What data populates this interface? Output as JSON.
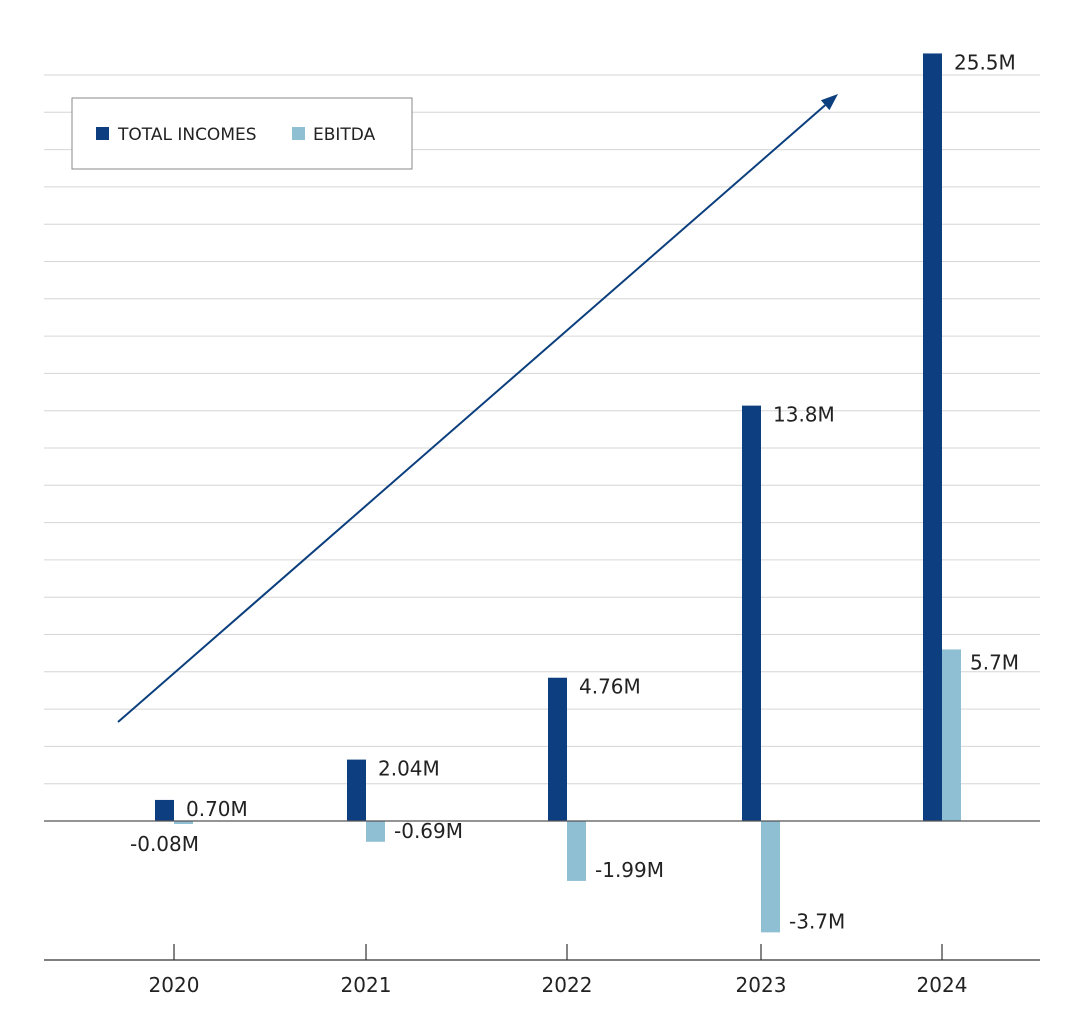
{
  "chart_data": {
    "type": "bar",
    "categories": [
      "2020",
      "2021",
      "2022",
      "2023",
      "2024"
    ],
    "series": [
      {
        "name": "TOTAL INCOMES",
        "color": "#0d3f80",
        "values": [
          0.7,
          2.04,
          4.76,
          13.8,
          25.5
        ],
        "labels": [
          "0.70M",
          "2.04M",
          "4.76M",
          "13.8M",
          "25.5M"
        ]
      },
      {
        "name": "EBITDA",
        "color": "#8fbfd3",
        "values": [
          -0.08,
          -0.69,
          -1.99,
          -3.7,
          5.7
        ],
        "labels": [
          "-0.08M",
          "-0.69M",
          "-1.99M",
          "-3.7M",
          "5.7M"
        ]
      }
    ],
    "ylim": [
      -4.5,
      26.0
    ],
    "grid": true,
    "legend": "top-left",
    "trend_arrow": "increasing",
    "title": "",
    "xlabel": "",
    "ylabel": ""
  }
}
